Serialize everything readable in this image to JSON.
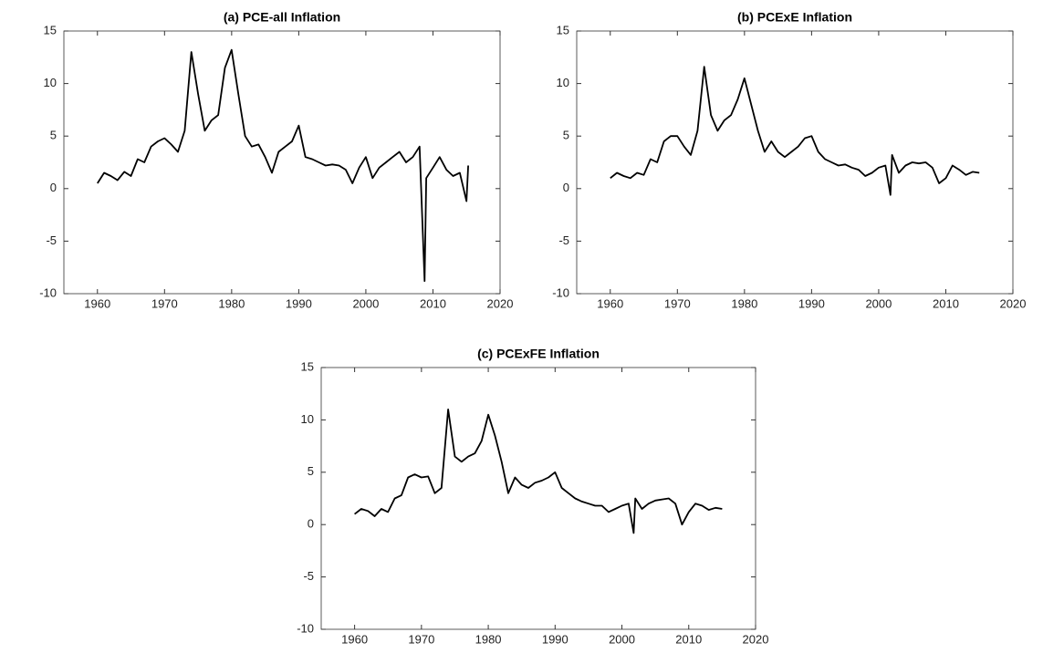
{
  "chart_data": [
    {
      "type": "line",
      "title": "(a) PCE-all Inflation",
      "color": "#000000",
      "x": [
        1960,
        1961,
        1962,
        1963,
        1964,
        1965,
        1966,
        1967,
        1968,
        1969,
        1970,
        1971,
        1972,
        1973,
        1974,
        1975,
        1976,
        1977,
        1978,
        1979,
        1980,
        1981,
        1982,
        1983,
        1984,
        1985,
        1986,
        1987,
        1988,
        1989,
        1990,
        1991,
        1992,
        1993,
        1994,
        1995,
        1996,
        1997,
        1998,
        1999,
        2000,
        2001,
        2002,
        2003,
        2004,
        2005,
        2006,
        2007,
        2008,
        2008.75,
        2009,
        2010,
        2011,
        2012,
        2013,
        2014,
        2015,
        2015.25
      ],
      "values": [
        0.5,
        1.5,
        1.2,
        0.8,
        1.6,
        1.2,
        2.8,
        2.5,
        4.0,
        4.5,
        4.8,
        4.2,
        3.5,
        5.5,
        13.0,
        9.0,
        5.5,
        6.5,
        7.0,
        11.5,
        13.2,
        9.0,
        5.0,
        4.0,
        4.2,
        3.0,
        1.5,
        3.5,
        4.0,
        4.5,
        6.0,
        3.0,
        2.8,
        2.5,
        2.2,
        2.3,
        2.2,
        1.8,
        0.5,
        2.0,
        3.0,
        1.0,
        2.0,
        2.5,
        3.0,
        3.5,
        2.5,
        3.0,
        4.0,
        -8.8,
        1.0,
        2.0,
        3.0,
        1.8,
        1.2,
        1.5,
        -1.2,
        2.2
      ],
      "xlim": [
        1955,
        2020
      ],
      "ylim": [
        -10,
        15
      ],
      "xticks": [
        1960,
        1970,
        1980,
        1990,
        2000,
        2010,
        2020
      ],
      "yticks": [
        -10,
        -5,
        0,
        5,
        10,
        15
      ]
    },
    {
      "type": "line",
      "title": "(b) PCExE Inflation",
      "color": "#000000",
      "x": [
        1960,
        1961,
        1962,
        1963,
        1964,
        1965,
        1966,
        1967,
        1968,
        1969,
        1970,
        1971,
        1972,
        1973,
        1974,
        1975,
        1976,
        1977,
        1978,
        1979,
        1980,
        1981,
        1982,
        1983,
        1984,
        1985,
        1986,
        1987,
        1988,
        1989,
        1990,
        1991,
        1992,
        1993,
        1994,
        1995,
        1996,
        1997,
        1998,
        1999,
        2000,
        2001,
        2001.75,
        2002,
        2003,
        2004,
        2005,
        2006,
        2007,
        2008,
        2009,
        2010,
        2011,
        2012,
        2013,
        2014,
        2015
      ],
      "values": [
        1.0,
        1.5,
        1.2,
        1.0,
        1.5,
        1.3,
        2.8,
        2.5,
        4.5,
        5.0,
        5.0,
        4.0,
        3.2,
        5.5,
        11.6,
        7.0,
        5.5,
        6.5,
        7.0,
        8.5,
        10.5,
        8.0,
        5.5,
        3.5,
        4.5,
        3.5,
        3.0,
        3.5,
        4.0,
        4.8,
        5.0,
        3.5,
        2.8,
        2.5,
        2.2,
        2.3,
        2.0,
        1.8,
        1.2,
        1.5,
        2.0,
        2.2,
        -0.6,
        3.2,
        1.5,
        2.2,
        2.5,
        2.4,
        2.5,
        2.0,
        0.5,
        1.0,
        2.2,
        1.8,
        1.3,
        1.6,
        1.5
      ],
      "xlim": [
        1955,
        2020
      ],
      "ylim": [
        -10,
        15
      ],
      "xticks": [
        1960,
        1970,
        1980,
        1990,
        2000,
        2010,
        2020
      ],
      "yticks": [
        -10,
        -5,
        0,
        5,
        10,
        15
      ]
    },
    {
      "type": "line",
      "title": "(c) PCExFE Inflation",
      "color": "#000000",
      "x": [
        1960,
        1961,
        1962,
        1963,
        1964,
        1965,
        1966,
        1967,
        1968,
        1969,
        1970,
        1971,
        1972,
        1973,
        1974,
        1975,
        1976,
        1977,
        1978,
        1979,
        1980,
        1981,
        1982,
        1983,
        1984,
        1985,
        1986,
        1987,
        1988,
        1989,
        1990,
        1991,
        1992,
        1993,
        1994,
        1995,
        1996,
        1997,
        1998,
        1999,
        2000,
        2001,
        2001.75,
        2002,
        2003,
        2004,
        2005,
        2006,
        2007,
        2008,
        2009,
        2010,
        2011,
        2012,
        2013,
        2014,
        2015
      ],
      "values": [
        1.0,
        1.5,
        1.3,
        0.8,
        1.5,
        1.2,
        2.5,
        2.8,
        4.5,
        4.8,
        4.5,
        4.6,
        3.0,
        3.5,
        11.0,
        6.5,
        6.0,
        6.5,
        6.8,
        8.0,
        10.5,
        8.5,
        6.0,
        3.0,
        4.5,
        3.8,
        3.5,
        4.0,
        4.2,
        4.5,
        5.0,
        3.5,
        3.0,
        2.5,
        2.2,
        2.0,
        1.8,
        1.8,
        1.2,
        1.5,
        1.8,
        2.0,
        -0.8,
        2.5,
        1.5,
        2.0,
        2.3,
        2.4,
        2.5,
        2.0,
        0.0,
        1.2,
        2.0,
        1.8,
        1.4,
        1.6,
        1.5
      ],
      "xlim": [
        1955,
        2020
      ],
      "ylim": [
        -10,
        15
      ],
      "xticks": [
        1960,
        1970,
        1980,
        1990,
        2000,
        2010,
        2020
      ],
      "yticks": [
        -10,
        -5,
        0,
        5,
        10,
        15
      ]
    }
  ]
}
